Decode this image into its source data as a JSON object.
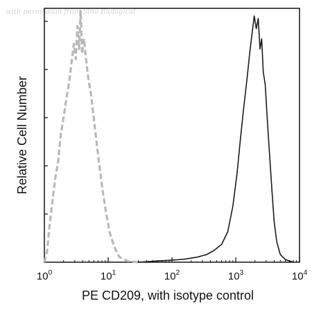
{
  "watermark": "with permission from Sino Biological",
  "chart_data": {
    "type": "line",
    "title": "",
    "xlabel": "PE CD209, with isotype control",
    "ylabel": "Relative Cell Number",
    "x_scale": "log",
    "xlim": [
      1,
      10000
    ],
    "ylim": [
      0,
      100
    ],
    "x_ticks": [
      {
        "value": 1,
        "base": "10",
        "exp": "0"
      },
      {
        "value": 10,
        "base": "10",
        "exp": "1"
      },
      {
        "value": 100,
        "base": "10",
        "exp": "2"
      },
      {
        "value": 1000,
        "base": "10",
        "exp": "3"
      },
      {
        "value": 10000,
        "base": "10",
        "exp": "4"
      }
    ],
    "series": [
      {
        "style": "dashed",
        "color": "#b8b8b8",
        "points": [
          [
            1.0,
            0
          ],
          [
            1.1,
            4
          ],
          [
            1.2,
            14
          ],
          [
            1.35,
            25
          ],
          [
            1.5,
            34
          ],
          [
            1.65,
            40
          ],
          [
            1.8,
            50
          ],
          [
            2.0,
            57
          ],
          [
            2.2,
            64
          ],
          [
            2.45,
            71
          ],
          [
            2.65,
            78
          ],
          [
            2.9,
            86
          ],
          [
            3.1,
            80
          ],
          [
            3.3,
            93
          ],
          [
            3.5,
            84
          ],
          [
            3.7,
            99
          ],
          [
            3.9,
            82
          ],
          [
            4.2,
            88
          ],
          [
            4.5,
            80
          ],
          [
            4.9,
            72
          ],
          [
            5.4,
            66
          ],
          [
            6.0,
            56
          ],
          [
            6.6,
            47
          ],
          [
            7.3,
            38
          ],
          [
            8.2,
            28
          ],
          [
            9.2,
            20
          ],
          [
            10.5,
            12
          ],
          [
            12.5,
            6
          ],
          [
            15,
            2
          ],
          [
            20,
            0.5
          ],
          [
            30,
            0
          ]
        ]
      },
      {
        "style": "solid",
        "color": "#1a1a1a",
        "points": [
          [
            30,
            0
          ],
          [
            60,
            0.5
          ],
          [
            100,
            0.8
          ],
          [
            160,
            1.2
          ],
          [
            250,
            2
          ],
          [
            350,
            3
          ],
          [
            450,
            4.5
          ],
          [
            600,
            7
          ],
          [
            750,
            12
          ],
          [
            900,
            22
          ],
          [
            1050,
            35
          ],
          [
            1200,
            50
          ],
          [
            1350,
            62
          ],
          [
            1500,
            72
          ],
          [
            1650,
            82
          ],
          [
            1800,
            90
          ],
          [
            1950,
            97
          ],
          [
            2100,
            92
          ],
          [
            2250,
            96
          ],
          [
            2400,
            84
          ],
          [
            2550,
            88
          ],
          [
            2700,
            75
          ],
          [
            2900,
            70
          ],
          [
            3150,
            55
          ],
          [
            3400,
            42
          ],
          [
            3700,
            28
          ],
          [
            4000,
            16
          ],
          [
            4400,
            8
          ],
          [
            5000,
            3
          ],
          [
            6000,
            1
          ],
          [
            7000,
            0.5
          ],
          [
            8000,
            0
          ]
        ]
      }
    ]
  }
}
